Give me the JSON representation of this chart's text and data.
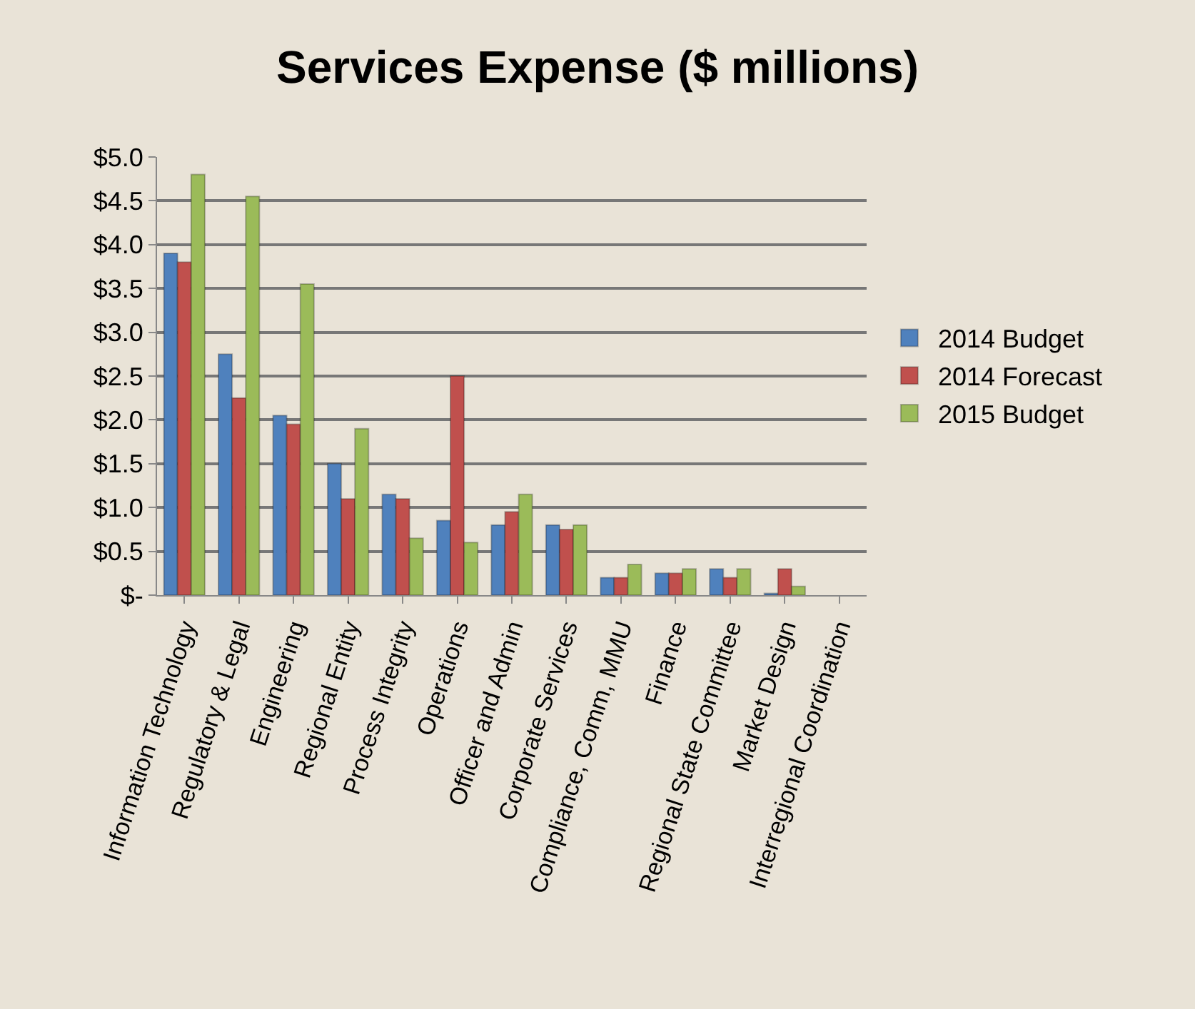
{
  "chart_data": {
    "type": "bar",
    "title": "Services Expense ($ millions)",
    "categories": [
      "Information Technology",
      "Regulatory & Legal",
      "Engineering",
      "Regional Entity",
      "Process Integrity",
      "Operations",
      "Officer and Admin",
      "Corporate Services",
      "Compliance, Comm, MMU",
      "Finance",
      "Regional State Committee",
      "Market Design",
      "Interregional Coordination"
    ],
    "series": [
      {
        "name": "2014 Budget",
        "color": "#4f81bd",
        "values": [
          3.9,
          2.75,
          2.05,
          1.5,
          1.15,
          0.85,
          0.8,
          0.8,
          0.2,
          0.25,
          0.3,
          0.02,
          null
        ]
      },
      {
        "name": "2014 Forecast",
        "color": "#c0504d",
        "values": [
          3.8,
          2.25,
          1.95,
          1.1,
          1.1,
          2.5,
          0.95,
          0.75,
          0.2,
          0.25,
          0.2,
          0.3,
          null
        ]
      },
      {
        "name": "2015 Budget",
        "color": "#9bbb59",
        "values": [
          4.8,
          4.55,
          3.55,
          1.9,
          0.65,
          0.6,
          1.15,
          0.8,
          0.35,
          0.3,
          0.3,
          0.1,
          null
        ]
      }
    ],
    "ylim": [
      0,
      5
    ],
    "yticks": [
      {
        "value": 0,
        "label": "$-"
      },
      {
        "value": 0.5,
        "label": "$0.5"
      },
      {
        "value": 1,
        "label": "$1.0"
      },
      {
        "value": 1.5,
        "label": "$1.5"
      },
      {
        "value": 2,
        "label": "$2.0"
      },
      {
        "value": 2.5,
        "label": "$2.5"
      },
      {
        "value": 3,
        "label": "$3.0"
      },
      {
        "value": 3.5,
        "label": "$3.5"
      },
      {
        "value": 4,
        "label": "$4.0"
      },
      {
        "value": 4.5,
        "label": "$4.5"
      },
      {
        "value": 5,
        "label": "$5.0"
      }
    ],
    "grid": "y",
    "legend": "right"
  }
}
